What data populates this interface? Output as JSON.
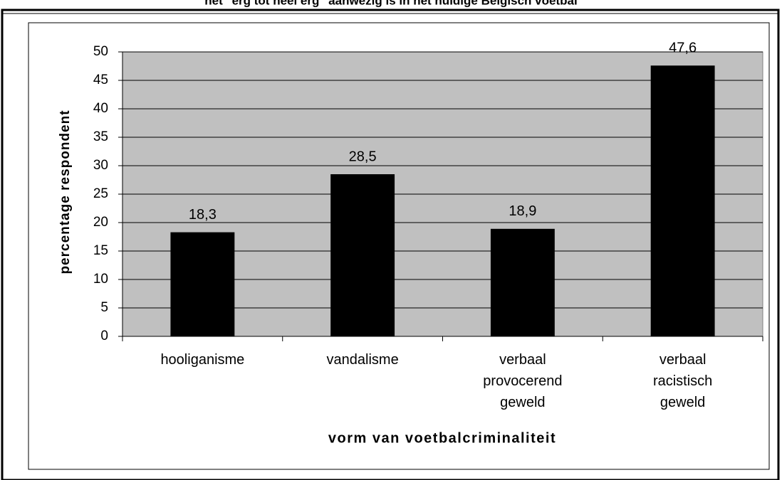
{
  "chart_data": {
    "type": "bar",
    "title": "het \"erg tot heel erg\" aanwezig is in het huidige Belgisch voetbal",
    "categories": [
      [
        "hooliganisme"
      ],
      [
        "vandalisme"
      ],
      [
        "verbaal",
        "provocerend",
        "geweld"
      ],
      [
        "verbaal",
        "racistisch",
        "geweld"
      ]
    ],
    "values": [
      18.3,
      28.5,
      18.9,
      47.6
    ],
    "value_labels": [
      "18,3",
      "28,5",
      "18,9",
      "47,6"
    ],
    "color": "#000000",
    "ylim": [
      0,
      50
    ],
    "yticks": [
      0,
      5,
      10,
      15,
      20,
      25,
      30,
      35,
      40,
      45,
      50
    ],
    "grid": true,
    "x_label": "vorm van voetbalcriminaliteit",
    "y_label": "percentage respondent"
  }
}
